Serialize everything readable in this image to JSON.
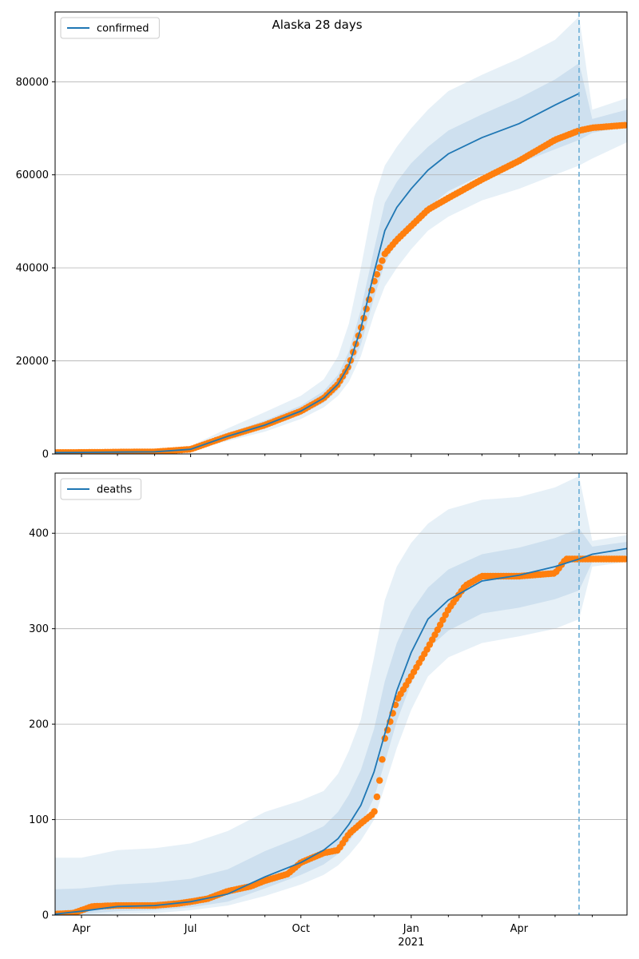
{
  "figure": {
    "title": "Alaska 28 days"
  },
  "colors": {
    "model": "#1f77b4",
    "observed": "#ff7f0e",
    "band": "#1f77b4",
    "grid": "#b0b0b0",
    "vline": "#6baed6"
  },
  "chart_data": [
    {
      "type": "line",
      "legend": "confirmed",
      "legend_position": "top-left",
      "grid": "y",
      "ylim": [
        0,
        95000
      ],
      "yticks": [
        0,
        20000,
        40000,
        60000,
        80000
      ],
      "ytick_labels": [
        "0",
        "20000",
        "40000",
        "60000",
        "80000"
      ],
      "xlim": [
        "2020-03-10",
        "2021-06-30"
      ],
      "xtick_labels_shown": false,
      "forecast_start": "2021-05-21",
      "series": [
        {
          "name": "confirmed",
          "kind": "model",
          "x": [
            "2020-03-10",
            "2020-04-01",
            "2020-05-01",
            "2020-06-01",
            "2020-07-01",
            "2020-08-01",
            "2020-09-01",
            "2020-10-01",
            "2020-10-20",
            "2020-11-01",
            "2020-11-10",
            "2020-11-20",
            "2020-12-01",
            "2020-12-10",
            "2020-12-20",
            "2021-01-01",
            "2021-01-15",
            "2021-02-01",
            "2021-03-01",
            "2021-04-01",
            "2021-05-01",
            "2021-05-21"
          ],
          "y": [
            300,
            320,
            400,
            450,
            1000,
            3800,
            6200,
            9200,
            12000,
            15000,
            19000,
            27000,
            39000,
            48000,
            53000,
            57000,
            61000,
            64500,
            68000,
            71000,
            75000,
            77500
          ]
        },
        {
          "name": "confirmed",
          "kind": "observed",
          "x": [
            "2020-03-10",
            "2020-04-01",
            "2020-05-01",
            "2020-06-01",
            "2020-07-01",
            "2020-08-01",
            "2020-09-01",
            "2020-10-01",
            "2020-10-20",
            "2020-11-01",
            "2020-11-10",
            "2020-11-20",
            "2020-12-01",
            "2020-12-10",
            "2020-12-20",
            "2021-01-01",
            "2021-01-15",
            "2021-02-01",
            "2021-03-01",
            "2021-04-01",
            "2021-05-01",
            "2021-05-21",
            "2021-06-01",
            "2021-06-30"
          ],
          "y": [
            300,
            320,
            400,
            450,
            1000,
            3800,
            6200,
            9200,
            12000,
            15000,
            19000,
            27000,
            37000,
            43000,
            46000,
            49000,
            52500,
            55000,
            59000,
            63000,
            67500,
            69500,
            70100,
            70700
          ]
        }
      ],
      "bands": {
        "x": [
          "2020-03-10",
          "2020-04-01",
          "2020-05-01",
          "2020-06-01",
          "2020-07-01",
          "2020-08-01",
          "2020-09-01",
          "2020-10-01",
          "2020-10-20",
          "2020-11-01",
          "2020-11-10",
          "2020-11-20",
          "2020-12-01",
          "2020-12-10",
          "2020-12-20",
          "2021-01-01",
          "2021-01-15",
          "2021-02-01",
          "2021-03-01",
          "2021-04-01",
          "2021-05-01",
          "2021-05-21",
          "2021-06-01",
          "2021-06-30"
        ],
        "outer_low": [
          100,
          150,
          200,
          250,
          600,
          2800,
          4800,
          7500,
          10000,
          12500,
          15500,
          21000,
          30000,
          36000,
          40000,
          44000,
          48000,
          51000,
          54500,
          57000,
          60000,
          62000,
          63500,
          67000
        ],
        "outer_high": [
          600,
          700,
          800,
          900,
          1700,
          5500,
          9000,
          12500,
          16000,
          21000,
          28000,
          40000,
          55000,
          62000,
          66000,
          70000,
          74000,
          78000,
          81500,
          85000,
          89000,
          94000,
          74000,
          76500
        ],
        "inner_low": [
          200,
          250,
          300,
          350,
          800,
          3300,
          5500,
          8400,
          11000,
          13700,
          17200,
          23500,
          33500,
          41000,
          45500,
          49500,
          53000,
          56500,
          60000,
          62500,
          65500,
          67500,
          69000,
          70500
        ],
        "inner_high": [
          400,
          450,
          550,
          600,
          1300,
          4500,
          7200,
          10400,
          13500,
          17000,
          22000,
          31000,
          44000,
          54000,
          58500,
          62500,
          66000,
          69500,
          73000,
          76500,
          80500,
          84000,
          72000,
          74000
        ]
      }
    },
    {
      "type": "line",
      "legend": "deaths",
      "legend_position": "top-left",
      "grid": "y",
      "ylim": [
        0,
        463
      ],
      "yticks": [
        0,
        100,
        200,
        300,
        400
      ],
      "ytick_labels": [
        "0",
        "100",
        "200",
        "300",
        "400"
      ],
      "xlim": [
        "2020-03-10",
        "2021-06-30"
      ],
      "xticks": [
        "2020-04-01",
        "2020-07-01",
        "2020-10-01",
        "2021-01-01",
        "2021-04-01"
      ],
      "xtick_labels": [
        "Apr",
        "Jul",
        "Oct",
        "Jan",
        "Apr"
      ],
      "xtick_sublabel": "2021",
      "forecast_start": "2021-05-21",
      "series": [
        {
          "name": "deaths",
          "kind": "model",
          "x": [
            "2020-03-10",
            "2020-04-01",
            "2020-05-01",
            "2020-06-01",
            "2020-07-01",
            "2020-08-01",
            "2020-09-01",
            "2020-10-01",
            "2020-10-20",
            "2020-11-01",
            "2020-11-10",
            "2020-11-20",
            "2020-12-01",
            "2020-12-10",
            "2020-12-20",
            "2021-01-01",
            "2021-01-15",
            "2021-02-01",
            "2021-03-01",
            "2021-04-01",
            "2021-05-01",
            "2021-05-21",
            "2021-06-01",
            "2021-06-30"
          ],
          "y": [
            1,
            4,
            9,
            10,
            14,
            22,
            40,
            55,
            68,
            80,
            95,
            115,
            150,
            190,
            235,
            275,
            310,
            330,
            350,
            356,
            365,
            373,
            378,
            384
          ]
        },
        {
          "name": "deaths",
          "kind": "observed",
          "x": [
            "2020-03-10",
            "2020-03-25",
            "2020-04-01",
            "2020-04-10",
            "2020-05-01",
            "2020-06-01",
            "2020-06-20",
            "2020-07-01",
            "2020-07-15",
            "2020-08-01",
            "2020-08-20",
            "2020-09-01",
            "2020-09-20",
            "2020-10-01",
            "2020-10-20",
            "2020-11-01",
            "2020-11-10",
            "2020-11-20",
            "2020-12-01",
            "2020-12-05",
            "2020-12-10",
            "2020-12-20",
            "2021-01-01",
            "2021-01-15",
            "2021-02-01",
            "2021-02-15",
            "2021-03-01",
            "2021-04-01",
            "2021-05-01",
            "2021-05-10",
            "2021-05-21",
            "2021-06-01",
            "2021-06-30"
          ],
          "y": [
            1,
            2,
            5,
            9,
            10,
            10,
            12,
            14,
            17,
            25,
            30,
            36,
            43,
            55,
            65,
            68,
            85,
            96,
            107,
            135,
            185,
            225,
            250,
            280,
            320,
            345,
            355,
            355,
            358,
            373,
            373,
            373,
            373
          ]
        }
      ],
      "bands": {
        "x": [
          "2020-03-10",
          "2020-04-01",
          "2020-05-01",
          "2020-06-01",
          "2020-07-01",
          "2020-08-01",
          "2020-09-01",
          "2020-10-01",
          "2020-10-20",
          "2020-11-01",
          "2020-11-10",
          "2020-11-20",
          "2020-12-01",
          "2020-12-10",
          "2020-12-20",
          "2021-01-01",
          "2021-01-15",
          "2021-02-01",
          "2021-03-01",
          "2021-04-01",
          "2021-05-01",
          "2021-05-21",
          "2021-06-01",
          "2021-06-30"
        ],
        "outer_low": [
          0,
          0,
          1,
          2,
          5,
          10,
          20,
          32,
          42,
          52,
          63,
          78,
          100,
          135,
          175,
          215,
          250,
          270,
          285,
          292,
          300,
          310,
          365,
          370
        ],
        "outer_high": [
          60,
          60,
          68,
          70,
          75,
          88,
          108,
          120,
          130,
          148,
          172,
          205,
          270,
          330,
          365,
          390,
          410,
          425,
          435,
          438,
          448,
          460,
          392,
          398
        ],
        "inner_low": [
          0,
          1,
          4,
          5,
          8,
          14,
          28,
          42,
          53,
          64,
          77,
          94,
          123,
          160,
          203,
          243,
          279,
          298,
          316,
          322,
          331,
          340,
          370,
          377
        ],
        "inner_high": [
          27,
          28,
          32,
          34,
          38,
          48,
          67,
          82,
          93,
          108,
          126,
          152,
          195,
          245,
          285,
          318,
          343,
          362,
          378,
          385,
          395,
          405,
          386,
          391
        ]
      }
    }
  ]
}
